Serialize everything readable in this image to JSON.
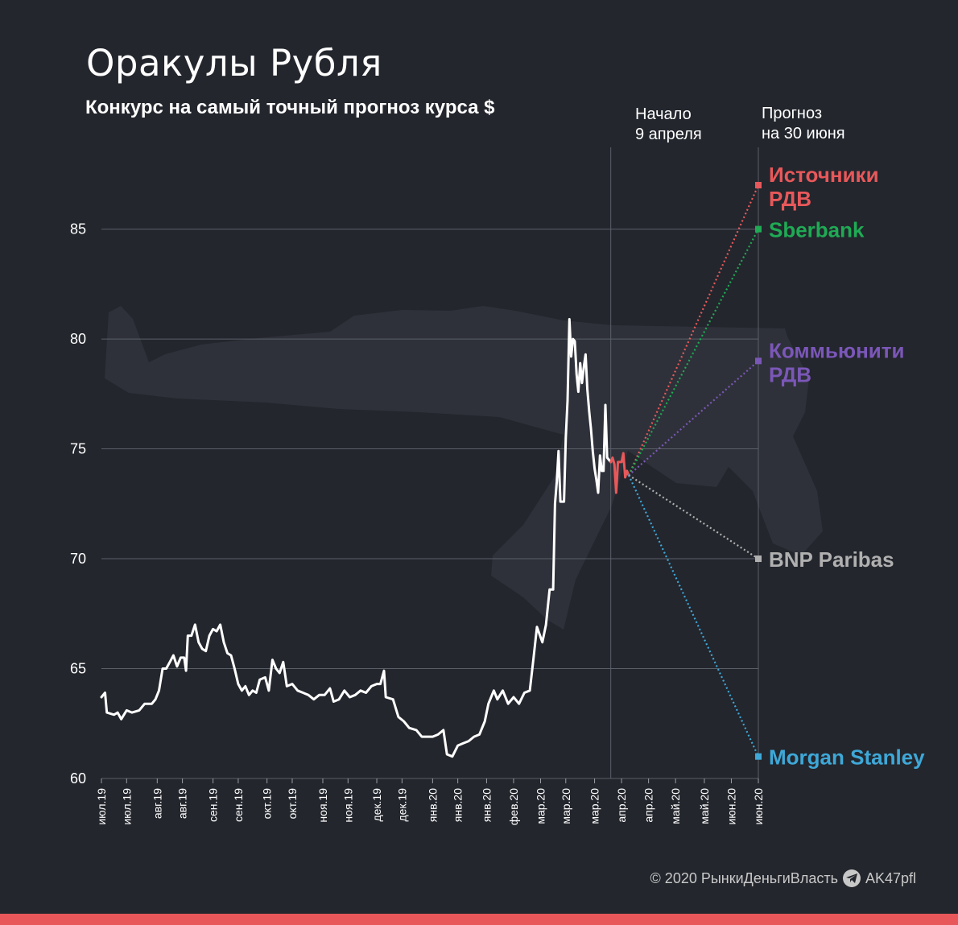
{
  "header": {
    "title": "Оракулы Рубля",
    "subtitle": "Конкурс на самый точный прогноз курса $",
    "start_note_line1": "Начало",
    "start_note_line2": "9 апреля",
    "forecast_note_line1": "Прогноз",
    "forecast_note_line2": "на 30 июня"
  },
  "footer": {
    "copyright": "© 2020  РынкиДеньгиВласть",
    "channel": "AK47pfl"
  },
  "colors": {
    "background": "#23262d",
    "grid": "#5b5f68",
    "history_line": "#ffffff",
    "recent_line": "#e8585a",
    "bottom_bar": "#e8585a",
    "watermark": "#2e3139"
  },
  "icons": {
    "footer_icon": "telegram-icon",
    "watermark": "rifle-silhouette"
  },
  "chart_data": {
    "type": "line",
    "ylim": [
      60,
      87
    ],
    "yticks": [
      60,
      65,
      70,
      75,
      80,
      85
    ],
    "x_tick_labels": [
      "июл.19",
      "июл.19",
      "авг.19",
      "авг.19",
      "сен.19",
      "сен.19",
      "окт.19",
      "окт.19",
      "ноя.19",
      "ноя.19",
      "дек.19",
      "дек.19",
      "янв.20",
      "янв.20",
      "янв.20",
      "фев.20",
      "мар.20",
      "мар.20",
      "мар.20",
      "апр.20",
      "апр.20",
      "май.20",
      "май.20",
      "июн.20",
      "июн.20"
    ],
    "x_tick_dates": [
      "2019-07-01",
      "2019-07-15",
      "2019-08-01",
      "2019-08-15",
      "2019-09-01",
      "2019-09-15",
      "2019-10-01",
      "2019-10-15",
      "2019-11-01",
      "2019-11-15",
      "2019-12-01",
      "2019-12-15",
      "2020-01-01",
      "2020-01-15",
      "2020-01-31",
      "2020-02-15",
      "2020-03-01",
      "2020-03-15",
      "2020-03-31",
      "2020-04-15",
      "2020-04-30",
      "2020-05-15",
      "2020-05-31",
      "2020-06-15",
      "2020-06-30"
    ],
    "start_date": "2020-04-09",
    "forecast_date": "2020-06-30",
    "series": [
      {
        "values": [
          [
            "2019-07-01",
            63.7
          ],
          [
            "2019-07-03",
            63.9
          ],
          [
            "2019-07-04",
            63.0
          ],
          [
            "2019-07-08",
            62.9
          ],
          [
            "2019-07-10",
            63.0
          ],
          [
            "2019-07-12",
            62.7
          ],
          [
            "2019-07-15",
            63.1
          ],
          [
            "2019-07-18",
            63.0
          ],
          [
            "2019-07-22",
            63.1
          ],
          [
            "2019-07-25",
            63.4
          ],
          [
            "2019-07-29",
            63.4
          ],
          [
            "2019-07-31",
            63.6
          ],
          [
            "2019-08-02",
            64.0
          ],
          [
            "2019-08-04",
            65.0
          ],
          [
            "2019-08-06",
            65.0
          ],
          [
            "2019-08-08",
            65.3
          ],
          [
            "2019-08-10",
            65.6
          ],
          [
            "2019-08-12",
            65.1
          ],
          [
            "2019-08-14",
            65.5
          ],
          [
            "2019-08-16",
            65.5
          ],
          [
            "2019-08-17",
            64.9
          ],
          [
            "2019-08-18",
            66.5
          ],
          [
            "2019-08-20",
            66.5
          ],
          [
            "2019-08-22",
            67.0
          ],
          [
            "2019-08-24",
            66.2
          ],
          [
            "2019-08-26",
            65.9
          ],
          [
            "2019-08-28",
            65.8
          ],
          [
            "2019-08-30",
            66.5
          ],
          [
            "2019-09-01",
            66.8
          ],
          [
            "2019-09-03",
            66.7
          ],
          [
            "2019-09-05",
            67.0
          ],
          [
            "2019-09-07",
            66.2
          ],
          [
            "2019-09-09",
            65.7
          ],
          [
            "2019-09-11",
            65.6
          ],
          [
            "2019-09-13",
            65.0
          ],
          [
            "2019-09-15",
            64.3
          ],
          [
            "2019-09-17",
            64.0
          ],
          [
            "2019-09-19",
            64.2
          ],
          [
            "2019-09-21",
            63.8
          ],
          [
            "2019-09-23",
            64.0
          ],
          [
            "2019-09-25",
            63.9
          ],
          [
            "2019-09-27",
            64.5
          ],
          [
            "2019-09-30",
            64.6
          ],
          [
            "2019-10-02",
            64.0
          ],
          [
            "2019-10-04",
            65.4
          ],
          [
            "2019-10-06",
            65.0
          ],
          [
            "2019-10-08",
            64.8
          ],
          [
            "2019-10-10",
            65.3
          ],
          [
            "2019-10-12",
            64.2
          ],
          [
            "2019-10-15",
            64.3
          ],
          [
            "2019-10-18",
            64.0
          ],
          [
            "2019-10-21",
            63.9
          ],
          [
            "2019-10-24",
            63.8
          ],
          [
            "2019-10-27",
            63.6
          ],
          [
            "2019-10-30",
            63.8
          ],
          [
            "2019-11-02",
            63.8
          ],
          [
            "2019-11-05",
            64.1
          ],
          [
            "2019-11-07",
            63.5
          ],
          [
            "2019-11-10",
            63.6
          ],
          [
            "2019-11-13",
            64.0
          ],
          [
            "2019-11-16",
            63.7
          ],
          [
            "2019-11-19",
            63.8
          ],
          [
            "2019-11-22",
            64.0
          ],
          [
            "2019-11-25",
            63.9
          ],
          [
            "2019-11-28",
            64.2
          ],
          [
            "2019-12-01",
            64.3
          ],
          [
            "2019-12-03",
            64.3
          ],
          [
            "2019-12-05",
            64.9
          ],
          [
            "2019-12-06",
            63.7
          ],
          [
            "2019-12-10",
            63.6
          ],
          [
            "2019-12-13",
            62.8
          ],
          [
            "2019-12-16",
            62.6
          ],
          [
            "2019-12-19",
            62.3
          ],
          [
            "2019-12-23",
            62.2
          ],
          [
            "2019-12-26",
            61.9
          ],
          [
            "2019-12-29",
            61.9
          ],
          [
            "2020-01-01",
            61.9
          ],
          [
            "2020-01-04",
            62.0
          ],
          [
            "2020-01-07",
            62.2
          ],
          [
            "2020-01-09",
            61.1
          ],
          [
            "2020-01-12",
            61.0
          ],
          [
            "2020-01-15",
            61.5
          ],
          [
            "2020-01-18",
            61.6
          ],
          [
            "2020-01-21",
            61.7
          ],
          [
            "2020-01-24",
            61.9
          ],
          [
            "2020-01-27",
            62.0
          ],
          [
            "2020-01-30",
            62.6
          ],
          [
            "2020-02-01",
            63.4
          ],
          [
            "2020-02-04",
            64.0
          ],
          [
            "2020-02-06",
            63.6
          ],
          [
            "2020-02-09",
            64.0
          ],
          [
            "2020-02-12",
            63.4
          ],
          [
            "2020-02-15",
            63.7
          ],
          [
            "2020-02-18",
            63.4
          ],
          [
            "2020-02-21",
            63.9
          ],
          [
            "2020-02-24",
            64.0
          ],
          [
            "2020-02-26",
            65.4
          ],
          [
            "2020-02-28",
            66.9
          ],
          [
            "2020-03-02",
            66.2
          ],
          [
            "2020-03-04",
            67.0
          ],
          [
            "2020-03-06",
            68.6
          ],
          [
            "2020-03-08",
            68.6
          ],
          [
            "2020-03-09",
            72.5
          ],
          [
            "2020-03-10",
            73.5
          ],
          [
            "2020-03-11",
            74.9
          ],
          [
            "2020-03-12",
            72.6
          ],
          [
            "2020-03-14",
            72.6
          ],
          [
            "2020-03-15",
            75.5
          ],
          [
            "2020-03-16",
            77.2
          ],
          [
            "2020-03-17",
            80.9
          ],
          [
            "2020-03-18",
            79.2
          ],
          [
            "2020-03-19",
            80.0
          ],
          [
            "2020-03-20",
            79.9
          ],
          [
            "2020-03-21",
            78.4
          ],
          [
            "2020-03-22",
            77.6
          ],
          [
            "2020-03-23",
            78.9
          ],
          [
            "2020-03-24",
            78.0
          ],
          [
            "2020-03-25",
            78.7
          ],
          [
            "2020-03-26",
            79.3
          ],
          [
            "2020-03-27",
            77.7
          ],
          [
            "2020-03-28",
            76.7
          ],
          [
            "2020-03-29",
            75.9
          ],
          [
            "2020-03-30",
            74.9
          ],
          [
            "2020-03-31",
            74.1
          ],
          [
            "2020-04-01",
            73.6
          ],
          [
            "2020-04-02",
            73.0
          ],
          [
            "2020-04-03",
            74.7
          ],
          [
            "2020-04-04",
            74.0
          ],
          [
            "2020-04-05",
            74.0
          ],
          [
            "2020-04-06",
            77.0
          ],
          [
            "2020-04-07",
            74.6
          ],
          [
            "2020-04-09",
            74.4
          ]
        ]
      },
      {
        "values": [
          [
            "2020-04-09",
            74.4
          ],
          [
            "2020-04-10",
            74.6
          ],
          [
            "2020-04-11",
            74.3
          ],
          [
            "2020-04-12",
            73.0
          ],
          [
            "2020-04-13",
            74.4
          ],
          [
            "2020-04-14",
            74.4
          ],
          [
            "2020-04-15",
            74.4
          ],
          [
            "2020-04-16",
            74.8
          ],
          [
            "2020-04-17",
            73.7
          ],
          [
            "2020-04-18",
            74.0
          ],
          [
            "2020-04-19",
            73.8
          ]
        ]
      }
    ],
    "forecast_origin": [
      "2020-04-19",
      73.8
    ],
    "forecasts": [
      {
        "name": "Источники РДВ",
        "value": 87.0,
        "color": "#e8585a"
      },
      {
        "name": "Sberbank",
        "value": 85.0,
        "color": "#1faa54"
      },
      {
        "name": "Коммьюнити РДВ",
        "value": 79.0,
        "color": "#7b57b8"
      },
      {
        "name": "BNP Paribas",
        "value": 70.0,
        "color": "#b0b0b0"
      },
      {
        "name": "Morgan Stanley",
        "value": 61.0,
        "color": "#3ea8d8"
      }
    ]
  }
}
